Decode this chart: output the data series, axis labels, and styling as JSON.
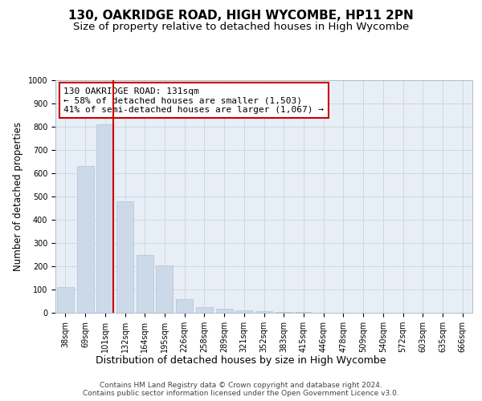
{
  "title": "130, OAKRIDGE ROAD, HIGH WYCOMBE, HP11 2PN",
  "subtitle": "Size of property relative to detached houses in High Wycombe",
  "xlabel": "Distribution of detached houses by size in High Wycombe",
  "ylabel": "Number of detached properties",
  "categories": [
    "38sqm",
    "69sqm",
    "101sqm",
    "132sqm",
    "164sqm",
    "195sqm",
    "226sqm",
    "258sqm",
    "289sqm",
    "321sqm",
    "352sqm",
    "383sqm",
    "415sqm",
    "446sqm",
    "478sqm",
    "509sqm",
    "540sqm",
    "572sqm",
    "603sqm",
    "635sqm",
    "666sqm"
  ],
  "values": [
    110,
    630,
    810,
    480,
    250,
    205,
    60,
    25,
    18,
    12,
    8,
    5,
    2,
    1,
    1,
    0,
    0,
    0,
    0,
    0,
    0
  ],
  "bar_color": "#ccd9e8",
  "bar_edge_color": "#b0c4d8",
  "highlight_bar_index": 2,
  "highlight_line_color": "#cc0000",
  "annotation_text": "130 OAKRIDGE ROAD: 131sqm\n← 58% of detached houses are smaller (1,503)\n41% of semi-detached houses are larger (1,067) →",
  "annotation_box_facecolor": "#ffffff",
  "annotation_box_edgecolor": "#cc0000",
  "ylim": [
    0,
    1000
  ],
  "yticks": [
    0,
    100,
    200,
    300,
    400,
    500,
    600,
    700,
    800,
    900,
    1000
  ],
  "bg_color": "#ffffff",
  "axes_bg_color": "#e8eef5",
  "grid_color": "#c8d4e0",
  "footer_line1": "Contains HM Land Registry data © Crown copyright and database right 2024.",
  "footer_line2": "Contains public sector information licensed under the Open Government Licence v3.0.",
  "title_fontsize": 11,
  "subtitle_fontsize": 9.5,
  "ylabel_fontsize": 8.5,
  "xlabel_fontsize": 9,
  "tick_fontsize": 7,
  "annotation_fontsize": 8,
  "footer_fontsize": 6.5
}
